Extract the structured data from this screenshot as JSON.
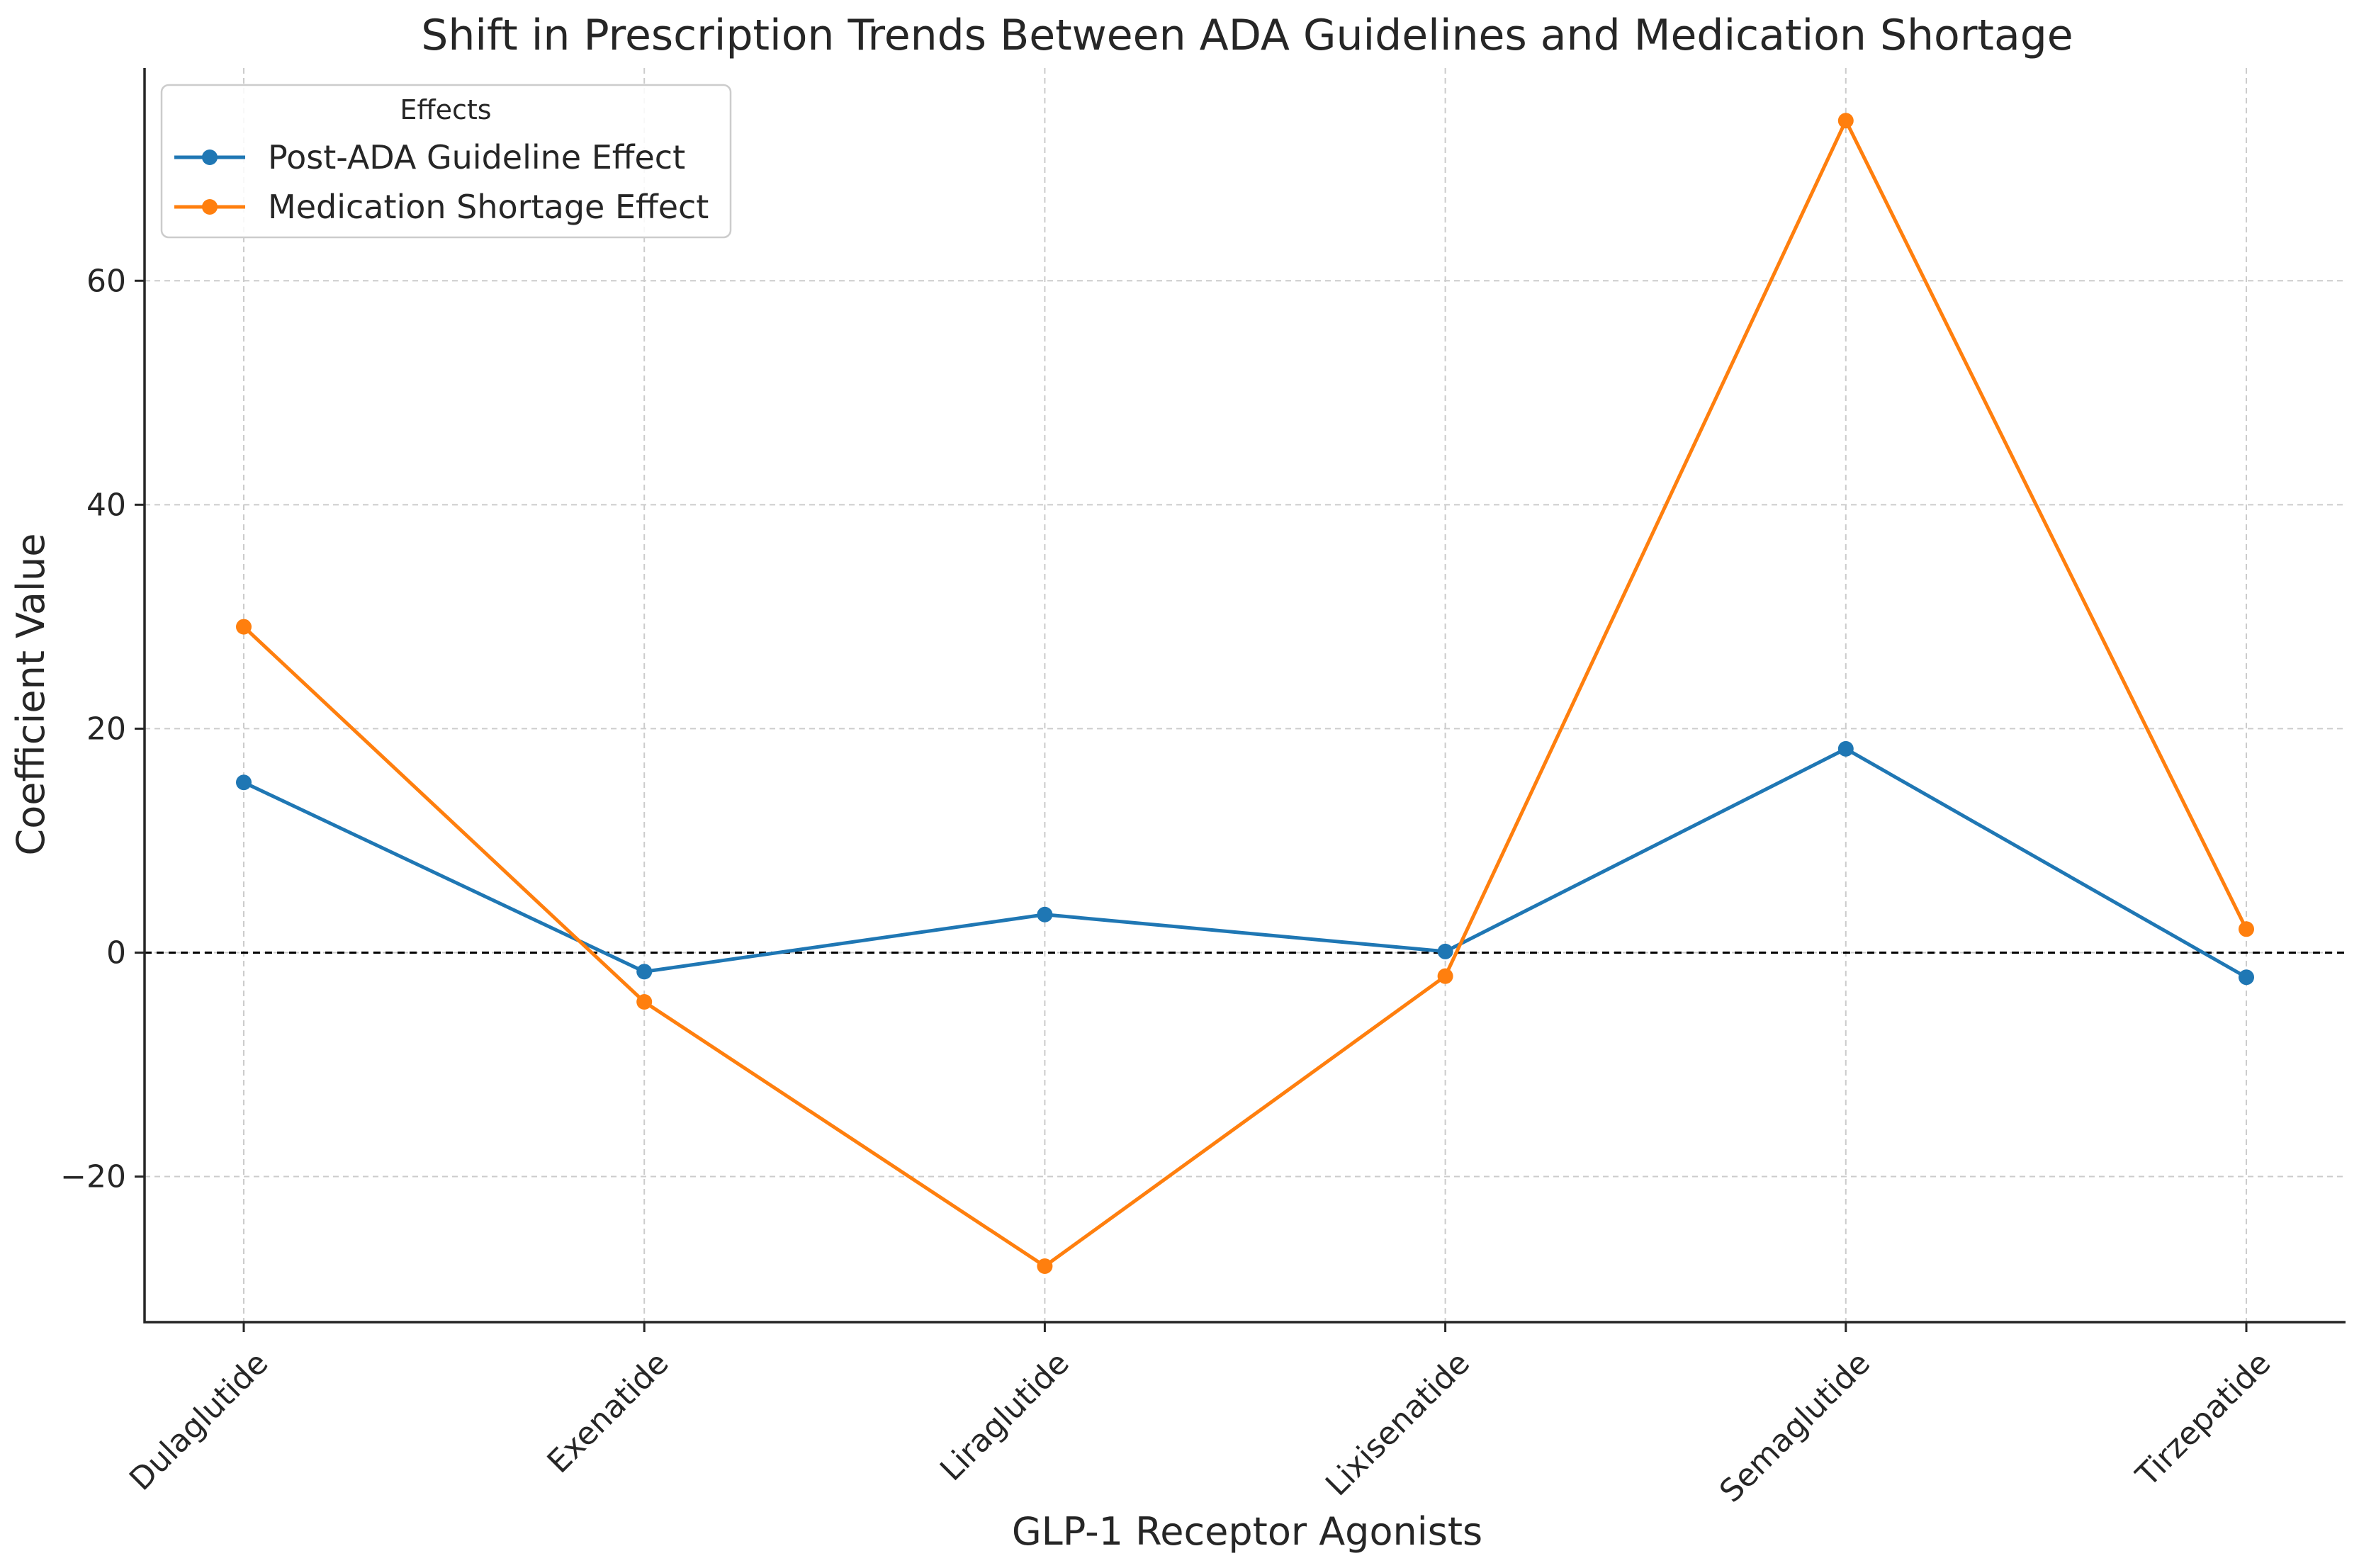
{
  "chart_data": {
    "type": "line",
    "title": "Shift in Prescription Trends Between ADA Guidelines and Medication Shortage",
    "xlabel": "GLP-1 Receptor Agonists",
    "ylabel": "Coefficient Value",
    "categories": [
      "Dulaglutide",
      "Exenatide",
      "Liraglutide",
      "Lixisenatide",
      "Semaglutide",
      "Tirzepatide"
    ],
    "series": [
      {
        "name": "Post-ADA Guideline Effect",
        "color": "#1f77b4",
        "values": [
          15.2,
          -1.7,
          3.4,
          0.1,
          18.2,
          -2.2
        ]
      },
      {
        "name": "Medication Shortage Effect",
        "color": "#ff7f0e",
        "values": [
          29.1,
          -4.4,
          -28.0,
          -2.1,
          74.3,
          2.1
        ]
      }
    ],
    "ylim": [
      -33,
      79
    ],
    "yticks": [
      -20,
      0,
      20,
      40,
      60
    ],
    "ytick_labels": [
      "−20",
      "0",
      "20",
      "40",
      "60"
    ],
    "reference_line": {
      "y": 0,
      "style": "dashed",
      "color": "#000000"
    },
    "grid": true,
    "legend": {
      "title": "Effects",
      "placement": "top-left"
    }
  }
}
